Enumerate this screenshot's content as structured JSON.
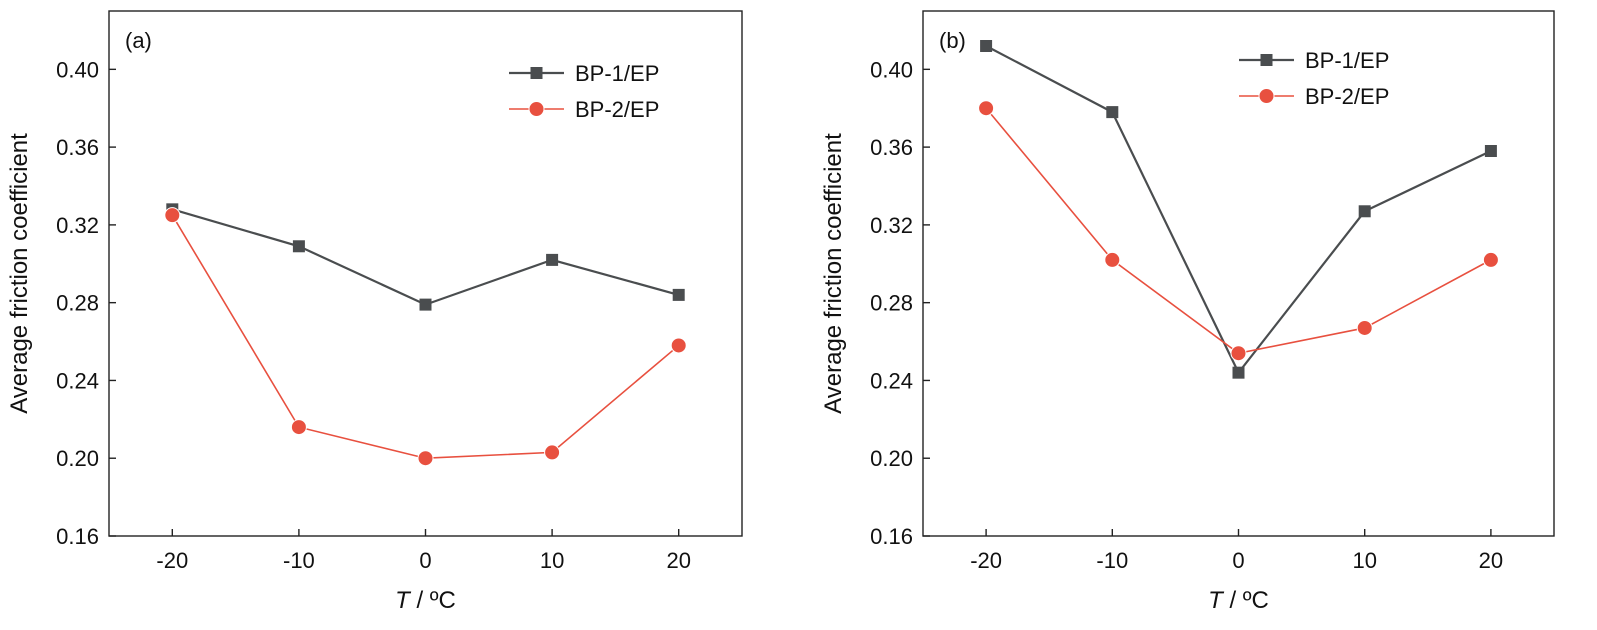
{
  "chart_data": [
    {
      "type": "line",
      "panel_label": "(a)",
      "xlabel": "T / ºC",
      "xlabel_italic": "T",
      "xlabel_rest": " / ºC",
      "ylabel": "Average friction coefficient",
      "x": [
        -20,
        -10,
        0,
        10,
        20
      ],
      "xticks": [
        "-20",
        "-10",
        "0",
        "10",
        "20"
      ],
      "xlim": [
        -25,
        25
      ],
      "ylim": [
        0.16,
        0.43
      ],
      "yticks": [
        "0.16",
        "0.20",
        "0.24",
        "0.28",
        "0.32",
        "0.36",
        "0.40"
      ],
      "legend_position": "top-right",
      "grid": false,
      "series": [
        {
          "name": "BP-1/EP",
          "color": "#4a4d4f",
          "marker": "square",
          "values": [
            0.328,
            0.309,
            0.279,
            0.302,
            0.284
          ]
        },
        {
          "name": "BP-2/EP",
          "color": "#e8503f",
          "marker": "circle",
          "values": [
            0.325,
            0.216,
            0.2,
            0.203,
            0.258
          ]
        }
      ]
    },
    {
      "type": "line",
      "panel_label": "(b)",
      "xlabel": "T / ºC",
      "xlabel_italic": "T",
      "xlabel_rest": " / ºC",
      "ylabel": "Average friction coefficient",
      "x": [
        -20,
        -10,
        0,
        10,
        20
      ],
      "xticks": [
        "-20",
        "-10",
        "0",
        "10",
        "20"
      ],
      "xlim": [
        -25,
        25
      ],
      "ylim": [
        0.16,
        0.43
      ],
      "yticks": [
        "0.16",
        "0.20",
        "0.24",
        "0.28",
        "0.32",
        "0.36",
        "0.40"
      ],
      "legend_position": "top-right",
      "grid": false,
      "series": [
        {
          "name": "BP-1/EP",
          "color": "#4a4d4f",
          "marker": "square",
          "values": [
            0.412,
            0.378,
            0.244,
            0.327,
            0.358
          ]
        },
        {
          "name": "BP-2/EP",
          "color": "#e8503f",
          "marker": "circle",
          "values": [
            0.38,
            0.302,
            0.254,
            0.267,
            0.302
          ]
        }
      ]
    }
  ]
}
